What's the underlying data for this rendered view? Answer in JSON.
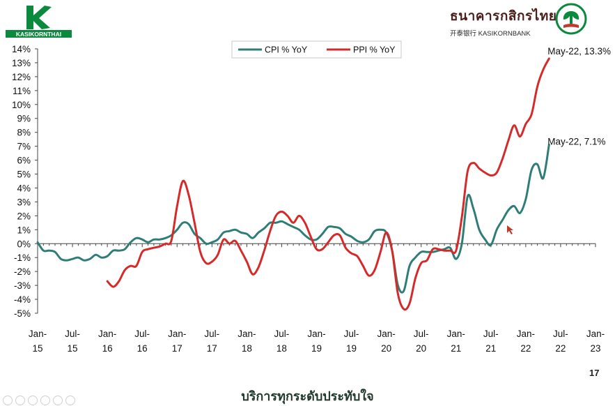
{
  "header": {
    "left_logo_text": "KASIKORNTHAI",
    "right_logo_thai": "ธนาคารกสิกรไทย",
    "right_logo_en": "开泰银行 KASIKORNBANK",
    "brand_color": "#0b8a3e"
  },
  "footer": {
    "page_number": "17",
    "tagline": "บริการทุกระดับประทับใจ"
  },
  "chart_data": {
    "type": "line",
    "title": "",
    "xlabel": "",
    "ylabel": "",
    "ylim": [
      -5,
      14
    ],
    "y_ticks": [
      "-5%",
      "-4%",
      "-3%",
      "-2%",
      "-1%",
      "0%",
      "1%",
      "2%",
      "3%",
      "4%",
      "5%",
      "6%",
      "7%",
      "8%",
      "9%",
      "10%",
      "11%",
      "12%",
      "13%",
      "14%"
    ],
    "x_ticks": [
      {
        "line1": "Jan-",
        "line2": "15",
        "m": 0
      },
      {
        "line1": "Jul-",
        "line2": "15",
        "m": 6
      },
      {
        "line1": "Jan-",
        "line2": "16",
        "m": 12
      },
      {
        "line1": "Jul-",
        "line2": "16",
        "m": 18
      },
      {
        "line1": "Jan-",
        "line2": "17",
        "m": 24
      },
      {
        "line1": "Jul-",
        "line2": "17",
        "m": 30
      },
      {
        "line1": "Jan-",
        "line2": "18",
        "m": 36
      },
      {
        "line1": "Jul-",
        "line2": "18",
        "m": 42
      },
      {
        "line1": "Jan-",
        "line2": "19",
        "m": 48
      },
      {
        "line1": "Jul-",
        "line2": "19",
        "m": 54
      },
      {
        "line1": "Jan-",
        "line2": "20",
        "m": 60
      },
      {
        "line1": "Jul-",
        "line2": "20",
        "m": 66
      },
      {
        "line1": "Jan-",
        "line2": "21",
        "m": 72
      },
      {
        "line1": "Jul-",
        "line2": "21",
        "m": 78
      },
      {
        "line1": "Jan-",
        "line2": "22",
        "m": 84
      },
      {
        "line1": "Jul-",
        "line2": "22",
        "m": 90
      },
      {
        "line1": "Jan-",
        "line2": "23",
        "m": 96
      }
    ],
    "x_range_months": [
      0,
      96
    ],
    "grid": false,
    "legend_position": "top-center",
    "series": [
      {
        "name": "CPI % YoY",
        "color": "#2e7d77",
        "start_month": 0,
        "values": [
          0.1,
          -0.5,
          -0.5,
          -0.6,
          -1.1,
          -1.2,
          -1.1,
          -1.0,
          -1.2,
          -1.1,
          -0.8,
          -1.0,
          -0.9,
          -0.5,
          -0.5,
          -0.4,
          0.1,
          0.4,
          0.3,
          0.1,
          0.3,
          0.3,
          0.4,
          0.6,
          1.0,
          1.5,
          1.4,
          0.7,
          0.4,
          0.0,
          0.1,
          0.3,
          0.8,
          0.9,
          1.0,
          0.8,
          0.7,
          0.4,
          0.8,
          1.1,
          1.5,
          1.5,
          1.6,
          1.4,
          1.2,
          1.0,
          0.6,
          0.3,
          0.3,
          0.7,
          1.2,
          1.2,
          1.1,
          0.7,
          0.5,
          0.2,
          0.1,
          0.3,
          0.9,
          1.0,
          0.8,
          -0.5,
          -3.0,
          -3.4,
          -1.6,
          -1.0,
          -0.6,
          -0.6,
          -0.6,
          -0.5,
          -0.4,
          -0.3,
          -1.1,
          0.0,
          3.4,
          2.5,
          1.0,
          0.3,
          -0.1,
          1.0,
          1.7,
          2.4,
          2.7,
          2.2,
          3.2,
          5.3,
          5.7,
          4.7,
          7.1
        ]
      },
      {
        "name": "PPI % YoY",
        "color": "#d62a2a",
        "start_month": 12,
        "values": [
          -2.7,
          -3.1,
          -2.7,
          -1.9,
          -1.6,
          -1.6,
          -0.6,
          -0.4,
          -0.3,
          -0.2,
          0.0,
          0.2,
          2.7,
          4.5,
          3.5,
          1.5,
          -0.6,
          -1.4,
          -1.3,
          -0.8,
          0.3,
          0.0,
          0.2,
          -0.5,
          -1.3,
          -2.2,
          -1.7,
          -0.5,
          0.9,
          2.0,
          2.3,
          2.0,
          1.5,
          2.0,
          1.5,
          0.5,
          -0.4,
          -0.4,
          0.1,
          0.6,
          0.6,
          -0.3,
          -0.7,
          -0.9,
          -1.6,
          -2.3,
          -1.9,
          -0.6,
          0.8,
          -0.5,
          -3.6,
          -4.7,
          -4.3,
          -2.5,
          -1.4,
          -1.2,
          -0.4,
          -0.4,
          -0.5,
          -0.5,
          -0.5,
          1.9,
          5.2,
          5.8,
          5.4,
          5.1,
          4.9,
          5.1,
          6.1,
          7.4,
          8.5,
          7.7,
          8.6,
          9.3,
          11.3,
          12.5,
          13.3
        ]
      }
    ],
    "annotations": [
      {
        "text": "May-22, 13.3%",
        "series": "PPI % YoY",
        "m": 88,
        "v": 13.3
      },
      {
        "text": "May-22, 7.1%",
        "series": "CPI % YoY",
        "m": 88,
        "v": 7.1
      }
    ]
  }
}
